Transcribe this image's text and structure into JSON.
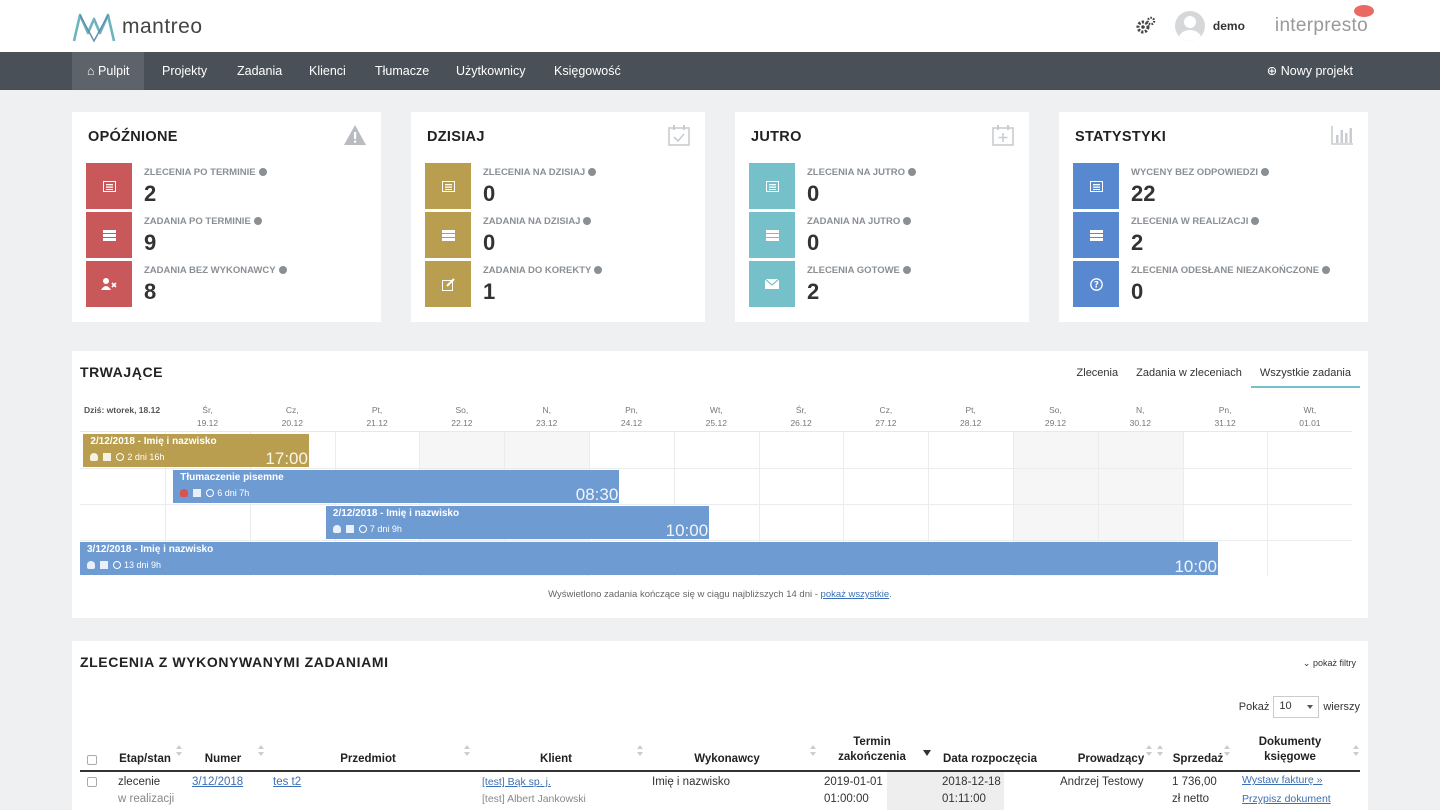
{
  "app": {
    "logo_text": "mantreo",
    "user": "demo",
    "brand2": "interpresto"
  },
  "nav": {
    "items": [
      "Pulpit",
      "Projekty",
      "Zadania",
      "Klienci",
      "Tłumacze",
      "Użytkownicy",
      "Księgowość"
    ],
    "new_project": "Nowy projekt"
  },
  "cards": [
    {
      "title": "OPÓŹNIONE",
      "icon": "warning-icon",
      "stats": [
        {
          "label": "ZLECENIA PO TERMINIE",
          "value": "2",
          "color": "#c9585a",
          "icon": "list-icon"
        },
        {
          "label": "ZADANIA PO TERMINIE",
          "value": "9",
          "color": "#c9585a",
          "icon": "tasks-icon"
        },
        {
          "label": "ZADANIA BEZ WYKONAWCY",
          "value": "8",
          "color": "#c9585a",
          "icon": "user-remove-icon"
        }
      ]
    },
    {
      "title": "DZISIAJ",
      "icon": "calendar-check-icon",
      "stats": [
        {
          "label": "ZLECENIA NA DZISIAJ",
          "value": "0",
          "color": "#b99e4f",
          "icon": "list-icon"
        },
        {
          "label": "ZADANIA NA DZISIAJ",
          "value": "0",
          "color": "#b99e4f",
          "icon": "tasks-icon"
        },
        {
          "label": "ZADANIA DO KOREKTY",
          "value": "1",
          "color": "#b99e4f",
          "icon": "edit-icon"
        }
      ]
    },
    {
      "title": "JUTRO",
      "icon": "calendar-plus-icon",
      "stats": [
        {
          "label": "ZLECENIA NA JUTRO",
          "value": "0",
          "color": "#75c0c9",
          "icon": "list-icon"
        },
        {
          "label": "ZADANIA NA JUTRO",
          "value": "0",
          "color": "#75c0c9",
          "icon": "tasks-icon"
        },
        {
          "label": "ZLECENIA GOTOWE",
          "value": "2",
          "color": "#75c0c9",
          "icon": "envelope-icon"
        }
      ]
    },
    {
      "title": "STATYSTYKI",
      "icon": "bar-chart-icon",
      "stats": [
        {
          "label": "WYCENY BEZ ODPOWIEDZI",
          "value": "22",
          "color": "#5888cf",
          "icon": "list-icon"
        },
        {
          "label": "ZLECENIA W REALIZACJI",
          "value": "2",
          "color": "#5888cf",
          "icon": "tasks-icon"
        },
        {
          "label": "ZLECENIA ODESŁANE NIEZAKOŃCZONE",
          "value": "0",
          "color": "#5888cf",
          "icon": "question-icon"
        }
      ]
    }
  ],
  "ongoing": {
    "title": "TRWAJĄCE",
    "tabs": [
      "Zlecenia",
      "Zadania w zleceniach",
      "Wszystkie zadania"
    ],
    "active_tab": 2,
    "today_label": "Dziś: wtorek, 18.12",
    "days": [
      {
        "name": "Śr,",
        "date": "19.12"
      },
      {
        "name": "Cz,",
        "date": "20.12"
      },
      {
        "name": "Pt,",
        "date": "21.12"
      },
      {
        "name": "So,",
        "date": "22.12",
        "weekend": true
      },
      {
        "name": "N,",
        "date": "23.12",
        "weekend": true
      },
      {
        "name": "Pn,",
        "date": "24.12"
      },
      {
        "name": "Wt,",
        "date": "25.12"
      },
      {
        "name": "Śr,",
        "date": "26.12"
      },
      {
        "name": "Cz,",
        "date": "27.12"
      },
      {
        "name": "Pt,",
        "date": "28.12"
      },
      {
        "name": "So,",
        "date": "29.12",
        "weekend": true
      },
      {
        "name": "N,",
        "date": "30.12",
        "weekend": true
      },
      {
        "name": "Pn,",
        "date": "31.12"
      },
      {
        "name": "Wt,",
        "date": "01.01"
      }
    ],
    "bars": [
      {
        "title": "2/12/2018 - Imię i nazwisko",
        "duration": "2 dni 16h",
        "time": "17:00",
        "color": "#b99e4f",
        "start": 0.04,
        "end": 2.7,
        "alert": false
      },
      {
        "title": "Tłumaczenie pisemne",
        "duration": "6 dni 7h",
        "time": "08:30",
        "color": "#6f9bd3",
        "start": 1.1,
        "end": 6.36,
        "alert": true
      },
      {
        "title": "2/12/2018 - Imię i nazwisko",
        "duration": "7 dni 9h",
        "time": "10:00",
        "color": "#6f9bd3",
        "start": 2.9,
        "end": 7.42,
        "alert": false
      },
      {
        "title": "3/12/2018 - Imię i nazwisko",
        "duration": "13 dni 9h",
        "time": "10:00",
        "color": "#6f9bd3",
        "start": 0,
        "end": 13.42,
        "alert": false
      }
    ],
    "footer_text": "Wyświetlono zadania kończące się w ciągu najbliższych 14 dni -",
    "footer_link": "pokaż wszystkie"
  },
  "orders": {
    "title": "ZLECENIA Z WYKONYWANYMI ZADANIAMI",
    "show_filters": "pokaż filtry",
    "rows_prefix": "Pokaż",
    "rows_value": "10",
    "rows_suffix": "wierszy",
    "columns": [
      "Etap/stan",
      "Numer",
      "Przedmiot",
      "Klient",
      "Wykonawcy",
      "Termin zakończenia",
      "Data rozpoczęcia",
      "Prowadzący",
      "Sprzedaż",
      "Dokumenty księgowe"
    ],
    "row": {
      "stage": "zlecenie",
      "state": "w realizacji",
      "number": "3/12/2018",
      "subject": "tes t2",
      "client": "[test] Bąk sp. j.",
      "client_contact": "[test] Albert Jankowski",
      "executors": "Imię i nazwisko",
      "deadline_date": "2019-01-01",
      "deadline_time": "01:00:00",
      "start_date": "2018-12-18",
      "start_time": "01:11:00",
      "manager": "Andrzej Testowy",
      "sales_value": "1 736,00",
      "sales_unit": "zł netto",
      "doc_action1": "Wystaw fakturę »",
      "doc_action2": "Przypisz dokument"
    }
  }
}
